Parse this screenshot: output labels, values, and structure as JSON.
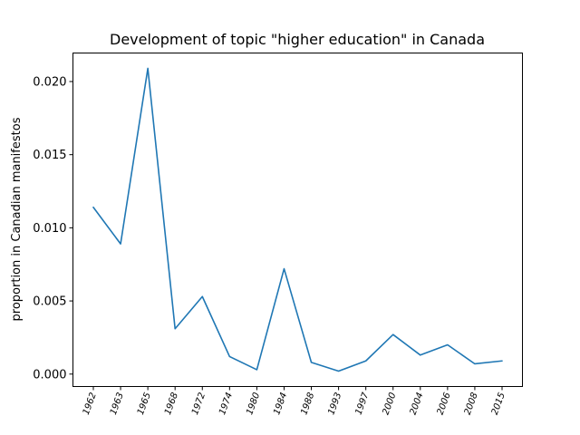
{
  "chart_data": {
    "type": "line",
    "title": "Development of topic \"higher education\" in Canada",
    "xlabel": "",
    "ylabel": "proportion in Canadian manifestos",
    "categories": [
      "1962",
      "1963",
      "1965",
      "1968",
      "1972",
      "1974",
      "1980",
      "1984",
      "1988",
      "1993",
      "1997",
      "2000",
      "2004",
      "2006",
      "2008",
      "2015"
    ],
    "series": [
      {
        "values": [
          0.0114,
          0.0089,
          0.0209,
          0.0031,
          0.0053,
          0.0012,
          0.0003,
          0.0072,
          0.0008,
          0.0002,
          0.0009,
          0.0027,
          0.0013,
          0.002,
          0.0007,
          0.0009
        ],
        "color": "#1f77b4"
      }
    ],
    "ylim": [
      -0.00085,
      0.02195
    ],
    "yticks": [
      "0.000",
      "0.005",
      "0.010",
      "0.015",
      "0.020"
    ],
    "grid": false,
    "legend": "none"
  }
}
